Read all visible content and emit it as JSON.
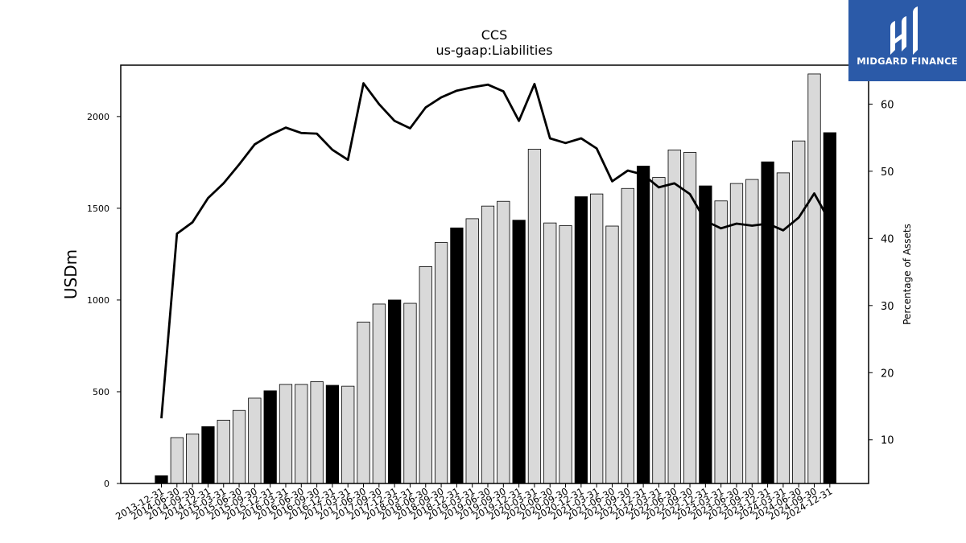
{
  "chart_data": {
    "type": "bar",
    "title": "CCS",
    "subtitle": "us-gaap:Liabilities",
    "ylabel": "USDm",
    "y2label": "Percentage of Assets",
    "ylim": [
      0,
      2280
    ],
    "y2lim": [
      3.5,
      65.8
    ],
    "yticks": [
      0,
      500,
      1000,
      1500,
      2000
    ],
    "y2ticks": [
      10,
      20,
      30,
      40,
      50,
      60
    ],
    "categories": [
      "2013-12-31",
      "2014-06-30",
      "2014-09-30",
      "2014-12-31",
      "2015-03-31",
      "2015-06-30",
      "2015-09-30",
      "2015-12-31",
      "2016-03-31",
      "2016-06-30",
      "2016-09-30",
      "2016-12-31",
      "2017-03-31",
      "2017-06-30",
      "2017-09-30",
      "2017-12-31",
      "2018-03-31",
      "2018-06-30",
      "2018-09-30",
      "2018-12-31",
      "2019-03-31",
      "2019-06-30",
      "2019-09-30",
      "2019-12-31",
      "2020-03-31",
      "2020-06-30",
      "2020-09-30",
      "2020-12-31",
      "2021-03-31",
      "2021-06-30",
      "2021-09-30",
      "2021-12-31",
      "2022-03-31",
      "2022-06-30",
      "2022-09-30",
      "2022-12-31",
      "2023-03-31",
      "2023-06-30",
      "2023-09-30",
      "2023-12-31",
      "2024-03-31",
      "2024-06-30",
      "2024-09-30",
      "2024-12-31"
    ],
    "values": [
      42,
      250,
      270,
      310,
      345,
      398,
      465,
      505,
      540,
      540,
      555,
      535,
      530,
      880,
      978,
      1000,
      982,
      1182,
      1313,
      1393,
      1443,
      1512,
      1538,
      1435,
      1822,
      1420,
      1405,
      1563,
      1578,
      1403,
      1608,
      1730,
      1668,
      1818,
      1804,
      1622,
      1540,
      1635,
      1657,
      1753,
      1693,
      1867,
      2232,
      1912
    ],
    "highlight": [
      true,
      false,
      false,
      true,
      false,
      false,
      false,
      true,
      false,
      false,
      false,
      true,
      false,
      false,
      false,
      true,
      false,
      false,
      false,
      true,
      false,
      false,
      false,
      true,
      false,
      false,
      false,
      true,
      false,
      false,
      false,
      true,
      false,
      false,
      false,
      true,
      false,
      false,
      false,
      true,
      false,
      false,
      false,
      true
    ],
    "line_values": [
      13.2,
      40.7,
      42.4,
      46.0,
      48.2,
      51.0,
      54.0,
      55.4,
      56.5,
      55.7,
      55.6,
      53.2,
      51.7,
      63.1,
      60.0,
      57.5,
      56.4,
      59.5,
      61.0,
      62.0,
      62.5,
      62.9,
      61.9,
      57.5,
      63.0,
      54.9,
      54.2,
      54.9,
      53.4,
      48.5,
      50.1,
      49.5,
      47.6,
      48.2,
      46.6,
      42.6,
      41.5,
      42.2,
      41.9,
      42.2,
      41.2,
      43.1,
      46.7,
      42.5
    ],
    "line_series": {
      "name": ""
    },
    "colors": {
      "bar_highlight": "#000000",
      "bar_normal": "#d9d9d9",
      "bar_edge": "#000000",
      "line": "#000000"
    }
  },
  "logo": {
    "text": "MIDGARD FINANCE",
    "color": "#2b5aa8"
  }
}
